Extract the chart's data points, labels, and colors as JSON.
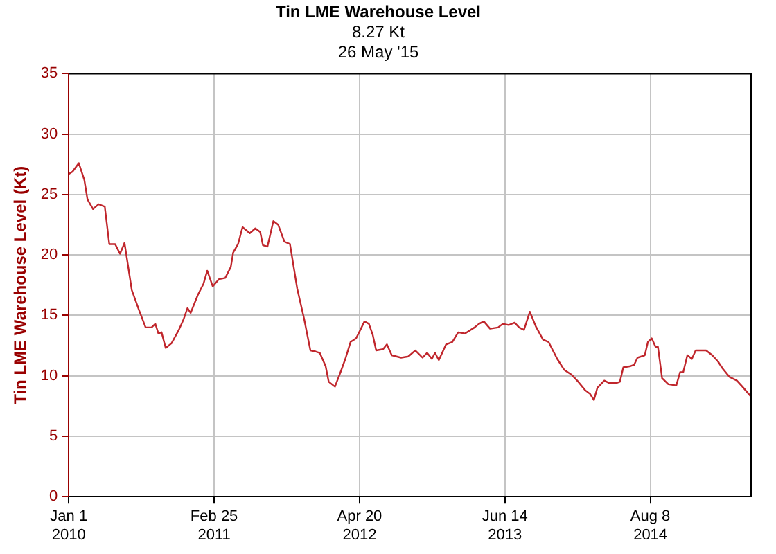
{
  "chart_data": {
    "type": "line",
    "title": "Tin LME Warehouse Level",
    "subtitle": "8.27 Kt\n26 May '15",
    "ylabel": "Tin LME Warehouse Level (Kt)",
    "x": [
      "2010-01-01",
      "2010-01-12",
      "2010-01-30",
      "2010-02-15",
      "2010-02-24",
      "2010-03-12",
      "2010-03-28",
      "2010-04-15",
      "2010-04-28",
      "2010-05-15",
      "2010-05-29",
      "2010-06-11",
      "2010-07-02",
      "2010-07-22",
      "2010-08-11",
      "2010-08-28",
      "2010-09-08",
      "2010-09-17",
      "2010-09-26",
      "2010-10-08",
      "2010-10-25",
      "2010-11-15",
      "2010-11-29",
      "2010-12-10",
      "2010-12-19",
      "2011-01-09",
      "2011-01-25",
      "2011-02-05",
      "2011-02-21",
      "2011-03-11",
      "2011-03-29",
      "2011-04-14",
      "2011-04-21",
      "2011-05-05",
      "2011-05-18",
      "2011-06-08",
      "2011-06-24",
      "2011-07-08",
      "2011-07-16",
      "2011-07-29",
      "2011-08-15",
      "2011-08-29",
      "2011-09-16",
      "2011-10-02",
      "2011-10-23",
      "2011-11-12",
      "2011-11-30",
      "2011-12-16",
      "2011-12-27",
      "2012-01-13",
      "2012-01-22",
      "2012-02-09",
      "2012-02-25",
      "2012-03-10",
      "2012-03-25",
      "2012-04-10",
      "2012-04-24",
      "2012-05-04",
      "2012-05-17",
      "2012-05-28",
      "2012-06-07",
      "2012-06-27",
      "2012-07-08",
      "2012-07-22",
      "2012-08-18",
      "2012-09-08",
      "2012-09-28",
      "2012-10-19",
      "2012-11-01",
      "2012-11-15",
      "2012-11-24",
      "2012-12-05",
      "2012-12-26",
      "2013-01-13",
      "2013-01-30",
      "2013-02-19",
      "2013-03-18",
      "2013-03-31",
      "2013-04-14",
      "2013-05-02",
      "2013-05-25",
      "2013-06-08",
      "2013-06-25",
      "2013-07-12",
      "2013-07-25",
      "2013-08-08",
      "2013-08-25",
      "2013-09-11",
      "2013-10-02",
      "2013-10-18",
      "2013-11-12",
      "2013-12-02",
      "2013-12-23",
      "2014-01-12",
      "2014-02-01",
      "2014-02-15",
      "2014-02-26",
      "2014-03-08",
      "2014-03-28",
      "2014-04-11",
      "2014-05-02",
      "2014-05-12",
      "2014-05-22",
      "2014-06-12",
      "2014-06-22",
      "2014-07-02",
      "2014-07-23",
      "2014-08-01",
      "2014-08-12",
      "2014-08-23",
      "2014-08-30",
      "2014-09-11",
      "2014-09-29",
      "2014-10-22",
      "2014-11-02",
      "2014-11-11",
      "2014-11-23",
      "2014-12-06",
      "2014-12-17",
      "2015-01-16",
      "2015-02-03",
      "2015-02-19",
      "2015-03-05",
      "2015-03-25",
      "2015-04-15",
      "2015-05-01",
      "2015-05-26"
    ],
    "series": [
      {
        "color": "#c0262c",
        "values": [
          26.7,
          26.9,
          27.6,
          26.2,
          24.6,
          23.8,
          24.2,
          24.0,
          20.9,
          20.9,
          20.1,
          21.0,
          17.1,
          15.5,
          14.0,
          14.0,
          14.3,
          13.5,
          13.6,
          12.3,
          12.7,
          13.8,
          14.7,
          15.6,
          15.2,
          16.7,
          17.6,
          18.7,
          17.4,
          18.0,
          18.1,
          19.0,
          20.2,
          20.9,
          22.3,
          21.8,
          22.2,
          21.9,
          20.8,
          20.7,
          22.8,
          22.5,
          21.1,
          20.9,
          17.2,
          14.7,
          12.1,
          12.0,
          11.9,
          10.8,
          9.5,
          9.1,
          10.3,
          11.4,
          12.8,
          13.1,
          13.9,
          14.5,
          14.3,
          13.4,
          12.1,
          12.2,
          12.6,
          11.7,
          11.5,
          11.6,
          12.1,
          11.5,
          11.9,
          11.4,
          11.9,
          11.3,
          12.6,
          12.8,
          13.6,
          13.5,
          14.0,
          14.3,
          14.5,
          13.9,
          14.0,
          14.3,
          14.2,
          14.4,
          14.0,
          13.8,
          15.3,
          14.1,
          13.0,
          12.8,
          11.4,
          10.5,
          10.1,
          9.5,
          8.8,
          8.5,
          8.0,
          9.0,
          9.6,
          9.4,
          9.4,
          9.5,
          10.7,
          10.8,
          10.9,
          11.5,
          11.7,
          12.8,
          13.1,
          12.4,
          12.4,
          9.8,
          9.3,
          9.2,
          10.3,
          10.3,
          11.7,
          11.4,
          12.1,
          12.1,
          11.7,
          11.2,
          10.6,
          9.9,
          9.6,
          9.1,
          8.27
        ]
      }
    ],
    "xlim": [
      "2010-01-01",
      "2015-05-26"
    ],
    "xticks": [
      {
        "value": "2010-01-01",
        "label": "Jan 1\n2010"
      },
      {
        "value": "2011-02-25",
        "label": "Feb 25\n2011"
      },
      {
        "value": "2012-04-20",
        "label": "Apr 20\n2012"
      },
      {
        "value": "2013-06-14",
        "label": "Jun 14\n2013"
      },
      {
        "value": "2014-08-08",
        "label": "Aug 8\n2014"
      }
    ],
    "ylim": [
      0,
      35
    ],
    "yticks": [
      0,
      5,
      10,
      15,
      20,
      25,
      30,
      35
    ],
    "grid": true,
    "legend": false,
    "marker": "none",
    "line_style": "solid"
  }
}
